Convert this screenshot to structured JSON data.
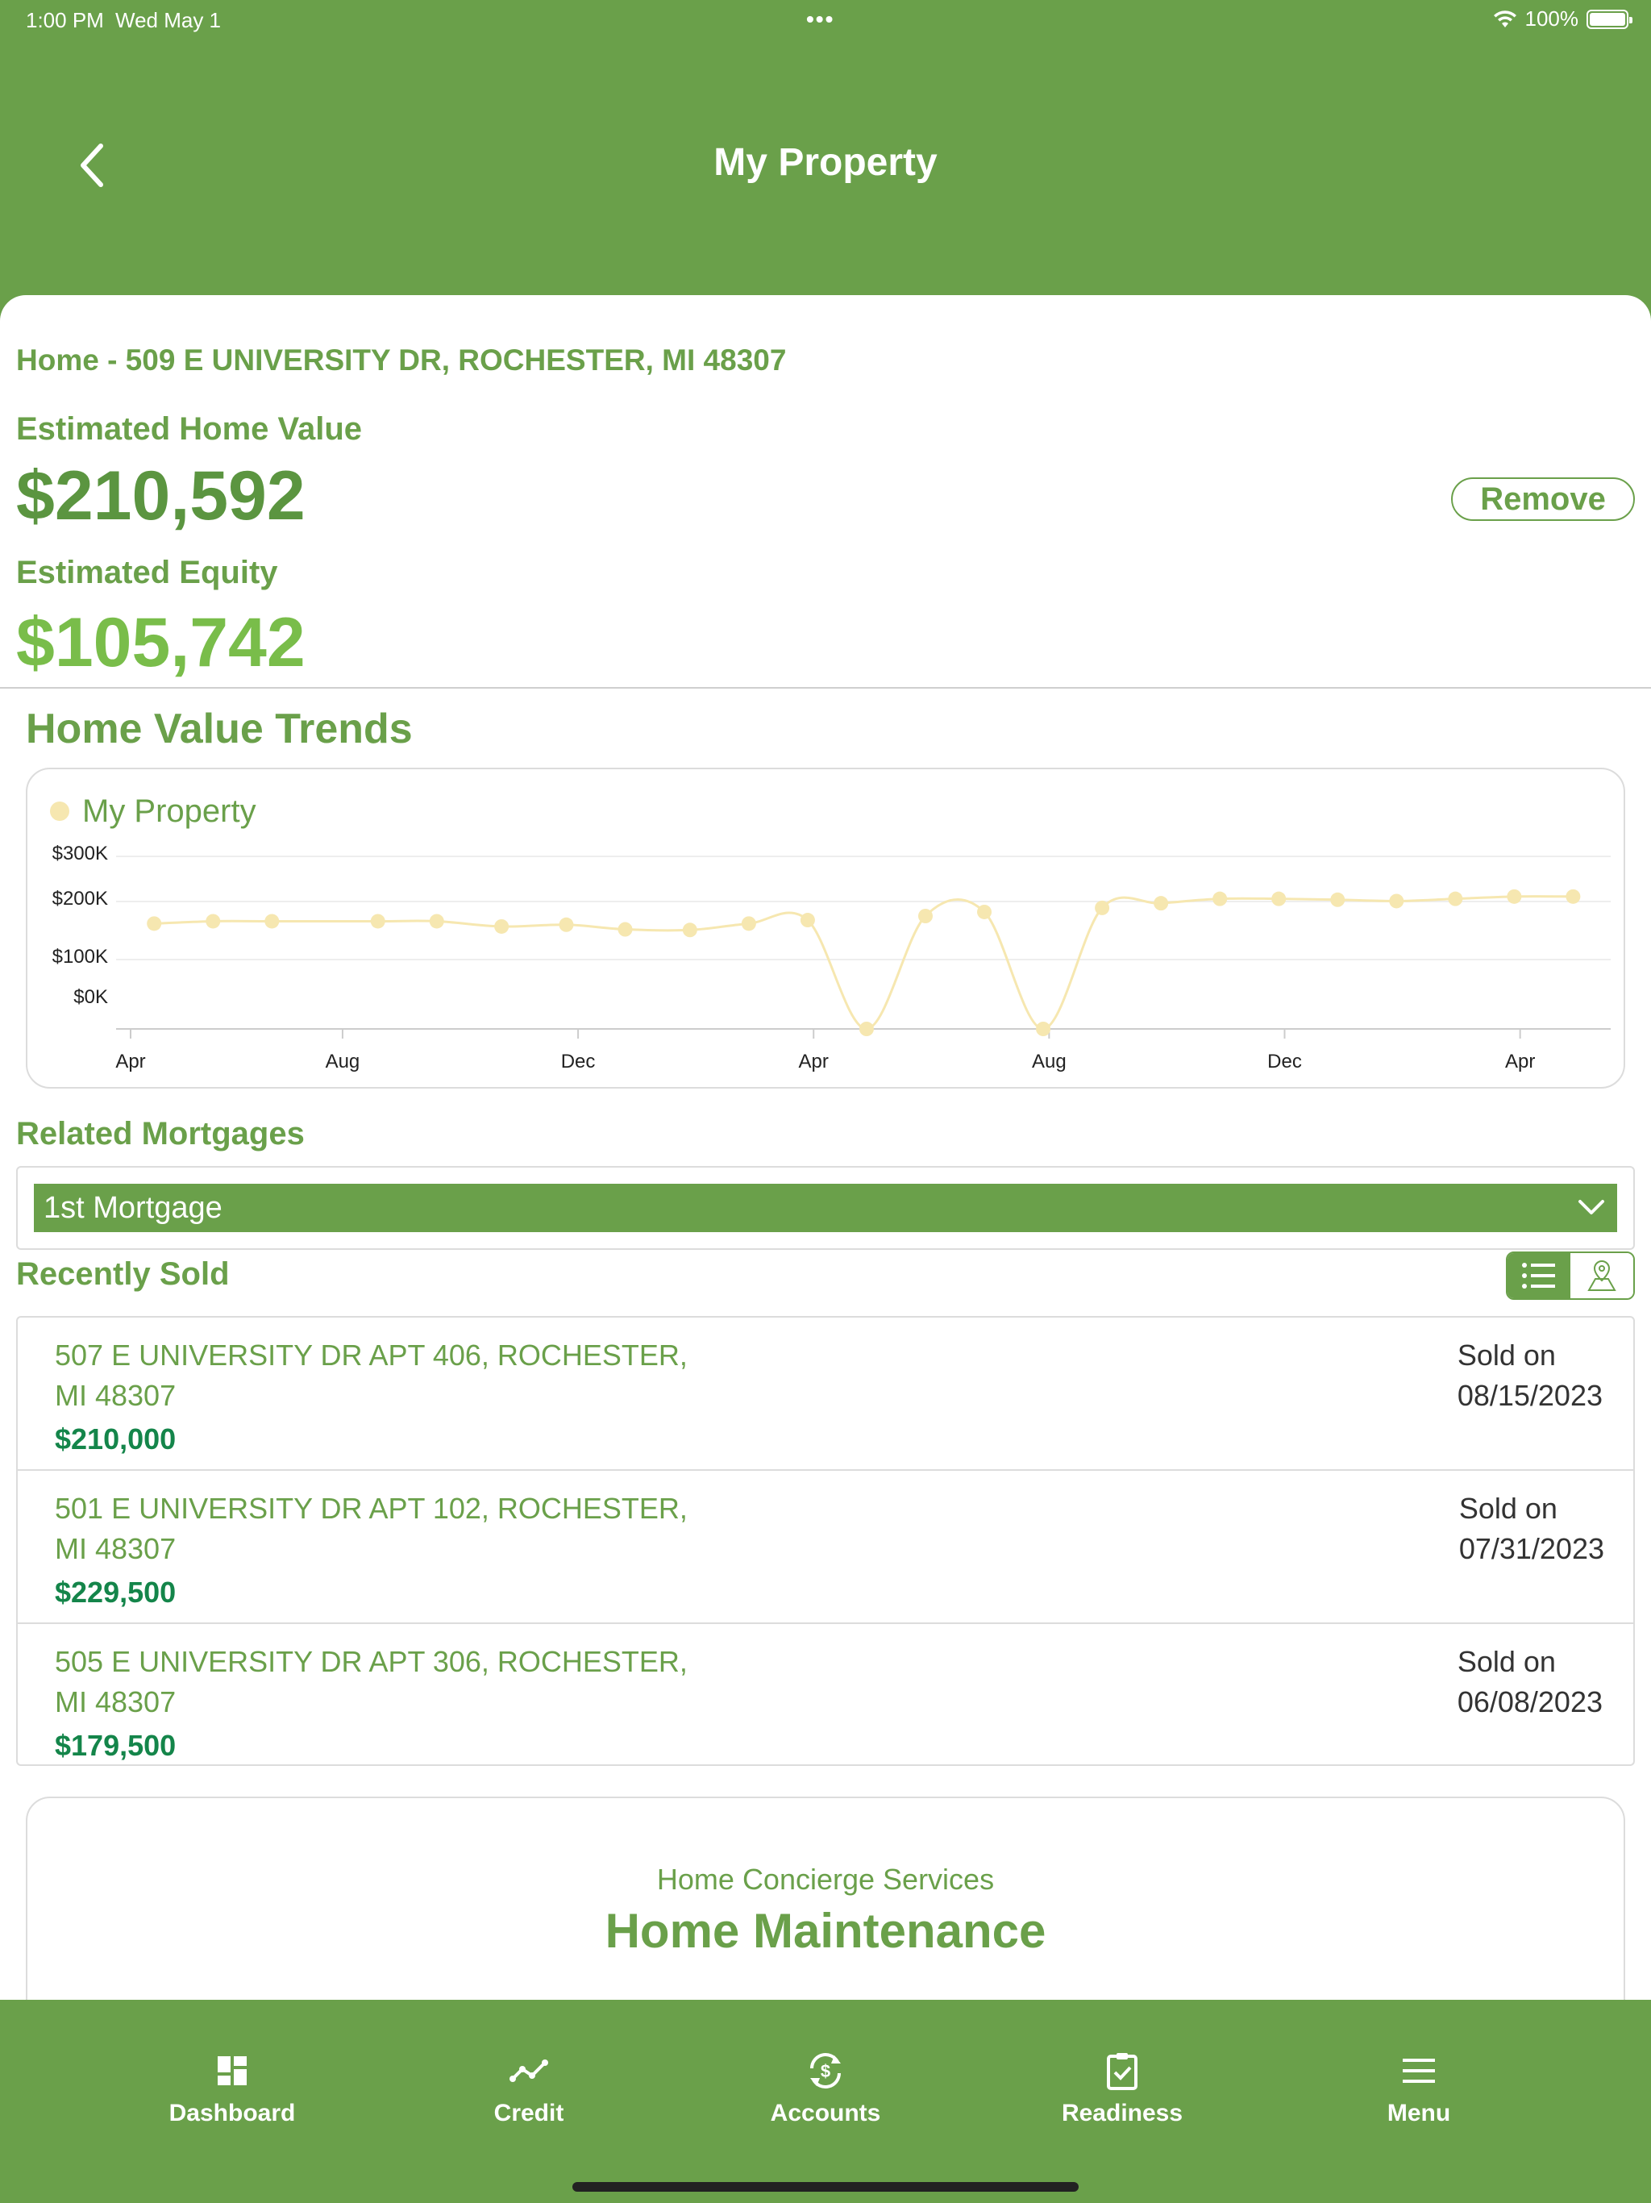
{
  "status_bar": {
    "time": "1:00 PM",
    "date": "Wed May 1",
    "dots": "•••",
    "battery": "100%"
  },
  "header": {
    "title": "My Property",
    "back_icon": "chevron-left-icon"
  },
  "property": {
    "address": "Home - 509 E UNIVERSITY DR, ROCHESTER, MI 48307",
    "home_value_label": "Estimated Home Value",
    "home_value": "$210,592",
    "equity_label": "Estimated Equity",
    "equity": "$105,742",
    "remove_label": "Remove"
  },
  "trends": {
    "heading": "Home Value Trends"
  },
  "chart_data": {
    "type": "line",
    "legend": "My Property",
    "legend_position": "top-left",
    "yticks": [
      "$300K",
      "$200K",
      "$100K",
      "$0K"
    ],
    "ylim": [
      0,
      300000
    ],
    "xticks": [
      "Apr",
      "Aug",
      "Dec",
      "Apr",
      "Aug",
      "Dec",
      "Apr"
    ],
    "grid": true,
    "series": [
      {
        "name": "My Property",
        "color": "#f6e7b0",
        "x": [
          0.4,
          1.4,
          2.4,
          4.2,
          5.2,
          6.3,
          7.4,
          8.4,
          9.5,
          10.5,
          11.5,
          12.5,
          13.5,
          14.5,
          15.5,
          16.5,
          17.5,
          18.5,
          19.5,
          20.5,
          21.5,
          22.5,
          23.5,
          24.5
        ],
        "values": [
          162000,
          166000,
          166000,
          166000,
          166000,
          157000,
          160000,
          152000,
          151000,
          162000,
          168000,
          0,
          175000,
          182000,
          0,
          189000,
          197000,
          206000,
          206000,
          204000,
          201000,
          206000,
          211000,
          211000
        ]
      }
    ],
    "x_tick_positions": [
      0,
      3.6,
      7.6,
      11.6,
      15.6,
      19.6,
      23.6
    ]
  },
  "mortgages": {
    "heading": "Related Mortgages",
    "selected": "1st Mortgage"
  },
  "recently_sold": {
    "heading": "Recently Sold",
    "items": [
      {
        "address_line1": "507 E UNIVERSITY DR APT 406, ROCHESTER,",
        "address_line2": "MI 48307",
        "price": "$210,000",
        "sold_label": "Sold on",
        "sold_date": "08/15/2023"
      },
      {
        "address_line1": "501 E UNIVERSITY DR APT 102, ROCHESTER,",
        "address_line2": "MI 48307",
        "price": "$229,500",
        "sold_label": "Sold on",
        "sold_date": "07/31/2023"
      },
      {
        "address_line1": "505 E UNIVERSITY DR APT 306, ROCHESTER,",
        "address_line2": "MI 48307",
        "price": "$179,500",
        "sold_label": "Sold on",
        "sold_date": "06/08/2023"
      }
    ]
  },
  "concierge": {
    "subtitle": "Home Concierge Services",
    "title": "Home Maintenance"
  },
  "tabs": [
    {
      "label": "Dashboard",
      "icon": "dashboard-icon"
    },
    {
      "label": "Credit",
      "icon": "credit-trend-icon"
    },
    {
      "label": "Accounts",
      "icon": "accounts-dollar-icon"
    },
    {
      "label": "Readiness",
      "icon": "readiness-clipboard-icon"
    },
    {
      "label": "Menu",
      "icon": "menu-icon"
    }
  ],
  "colors": {
    "brand_green": "#6aa04a",
    "price_green": "#14854a",
    "equity_green": "#79bd4a",
    "chart_series": "#f6e7b0"
  }
}
